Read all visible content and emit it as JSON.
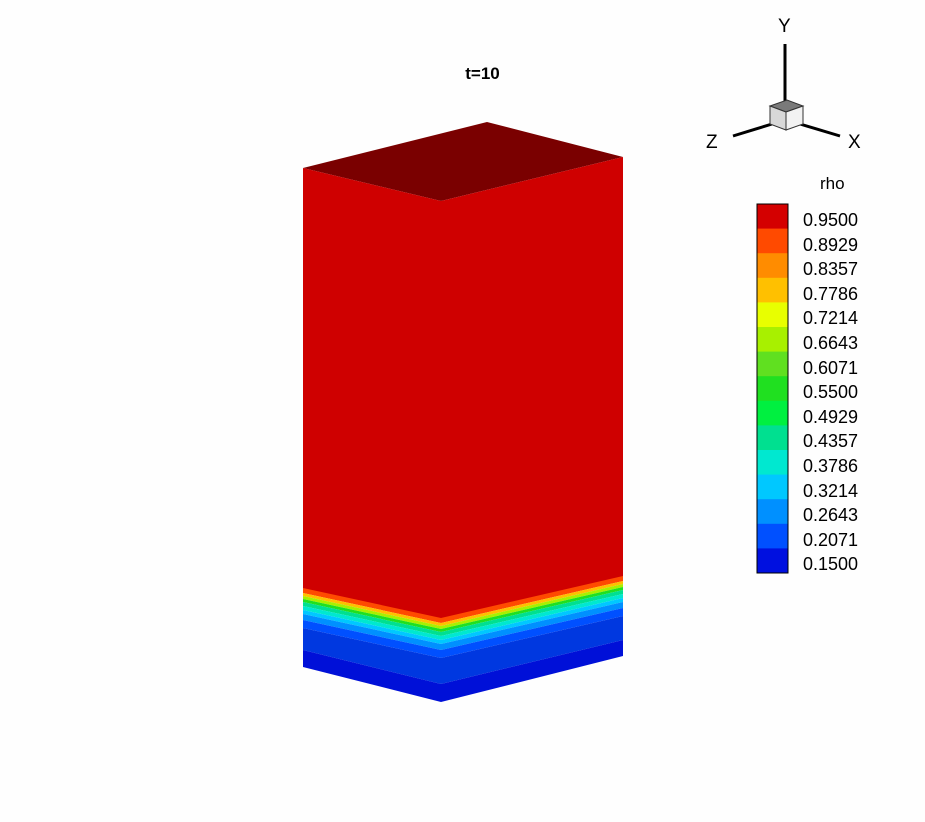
{
  "plot": {
    "title": "t=10"
  },
  "axes_triad": {
    "x_label": "X",
    "y_label": "Y",
    "z_label": "Z"
  },
  "legend": {
    "title": "rho",
    "levels": [
      "0.9500",
      "0.8929",
      "0.8357",
      "0.7786",
      "0.7214",
      "0.6643",
      "0.6071",
      "0.5500",
      "0.4929",
      "0.4357",
      "0.3786",
      "0.3214",
      "0.2643",
      "0.2071",
      "0.1500"
    ],
    "colors": [
      "#d40000",
      "#ff4a00",
      "#ff8c00",
      "#ffc000",
      "#e8ff00",
      "#a8f000",
      "#60e020",
      "#20e020",
      "#00f040",
      "#00e090",
      "#00e8d0",
      "#00c8ff",
      "#0090ff",
      "#0050ff",
      "#0010e0"
    ]
  },
  "colors": {
    "column_red": "#cf0000",
    "top_face": "#7a0000"
  }
}
